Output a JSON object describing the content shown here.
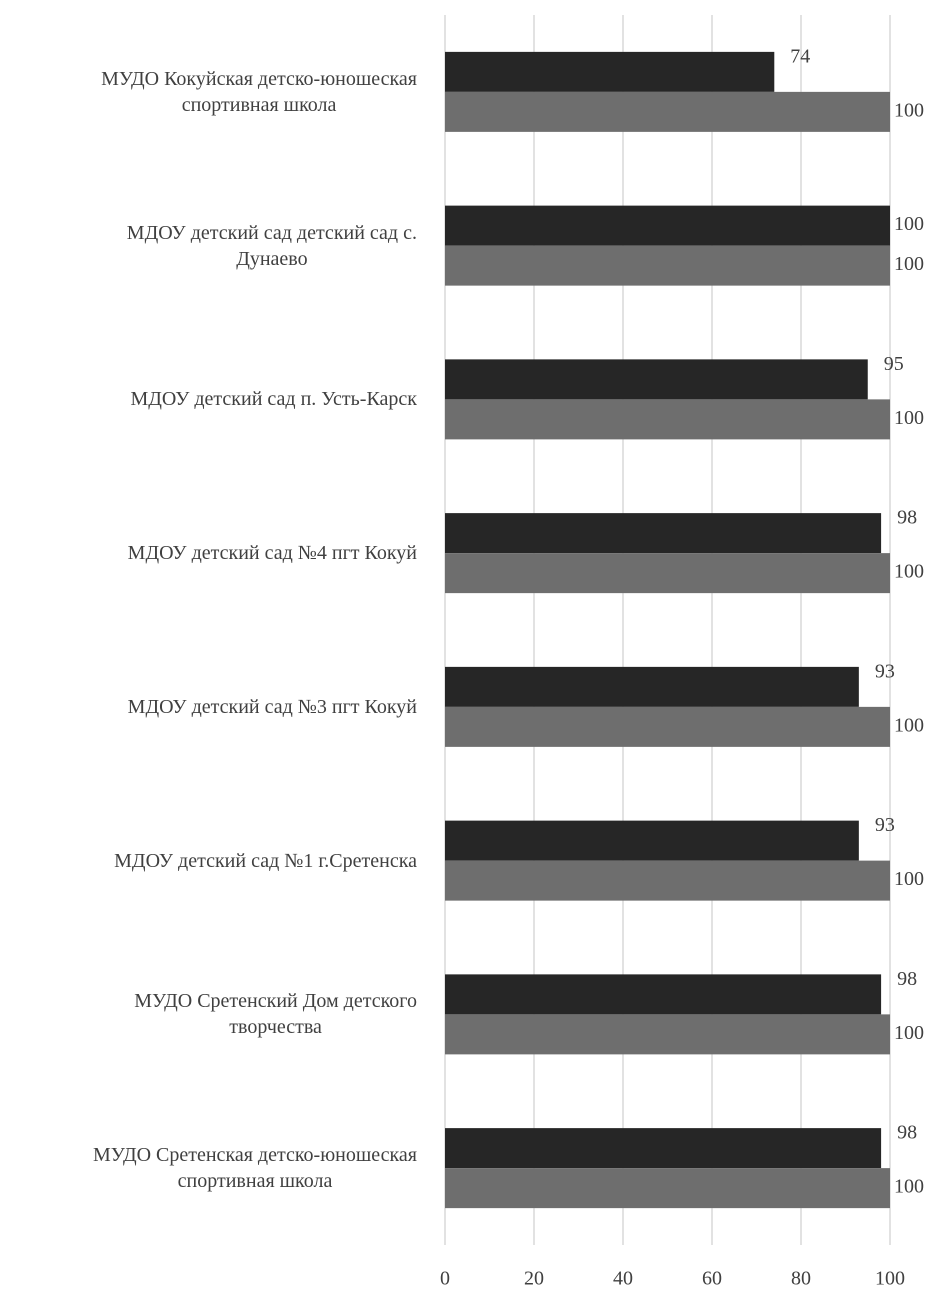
{
  "chart_data": {
    "type": "bar",
    "orientation": "horizontal",
    "categories": [
      "МУДО Кокуйская детско-юношеская\nспортивная школа",
      "МДОУ  детский сад детский сад с.\nДунаево",
      "МДОУ детский сад п. Усть-Карск",
      "МДОУ детский сад №4 пгт  Кокуй",
      "МДОУ детский сад  №3 пгт  Кокуй",
      "МДОУ детский сад №1 г.Сретенска",
      "МУДО Сретенский Дом детского\nтворчества",
      "МУДО Сретенская детско-юношеская\nспортивная школа"
    ],
    "series": [
      {
        "color": "#262626",
        "values": [
          74,
          100,
          95,
          98,
          93,
          93,
          98,
          98
        ]
      },
      {
        "color": "#6e6e6e",
        "values": [
          100,
          100,
          100,
          100,
          100,
          100,
          100,
          100
        ]
      }
    ],
    "xlim": [
      0,
      100
    ],
    "xticks": [
      0,
      20,
      40,
      60,
      80,
      100
    ],
    "grid": true
  }
}
